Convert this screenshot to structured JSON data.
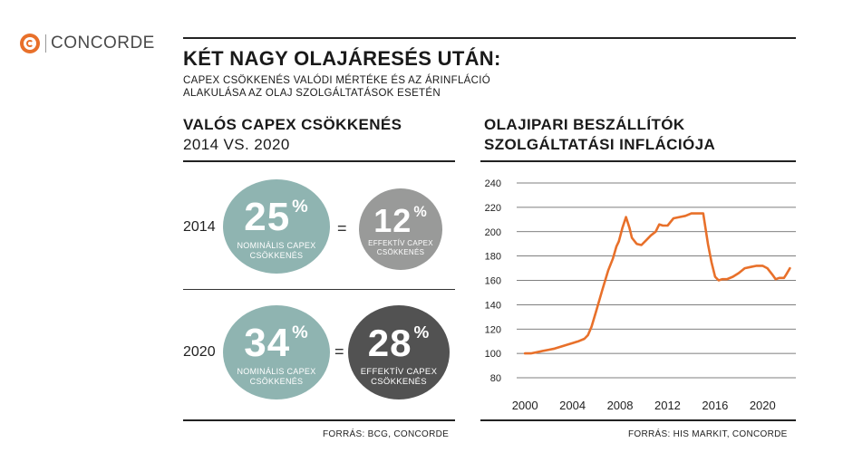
{
  "logo": {
    "text": "CONCORDE"
  },
  "header": {
    "title": "KÉT NAGY OLAJÁRESÉS UTÁN:",
    "subtitle_line1": "CAPEX CSÖKKENÉS VALÓDI MÉRTÉKE ÉS AZ ÁRINFLÁCIÓ",
    "subtitle_line2": "ALAKULÁSA AZ OLAJ SZOLGÁLTATÁSOK ESETÉN"
  },
  "left": {
    "title_line1": "VALÓS CAPEX CSÖKKENÉS",
    "title_line2": "2014 VS. 2020",
    "rows": [
      {
        "year": "2014",
        "nominal_value": "25",
        "nominal_unit": "%",
        "nominal_label_1": "NOMINÁLIS CAPEX",
        "nominal_label_2": "CSÖKKENÉS",
        "equals": "=",
        "effective_value": "12",
        "effective_unit": "%",
        "effective_label_1": "EFFEKTÍV CAPEX",
        "effective_label_2": "CSÖKKENÉS"
      },
      {
        "year": "2020",
        "nominal_value": "34",
        "nominal_unit": "%",
        "nominal_label_1": "NOMINÁLIS CAPEX",
        "nominal_label_2": "CSÖKKENÉS",
        "equals": "=",
        "effective_value": "28",
        "effective_unit": "%",
        "effective_label_1": "EFFEKTÍV CAPEX",
        "effective_label_2": "CSÖKKENÉS"
      }
    ],
    "source": "FORRÁS: BCG, CONCORDE"
  },
  "right": {
    "title_line1": "OLAJIPARI BESZÁLLÍTÓK",
    "title_line2": "SZOLGÁLTATÁSI INFLÁCIÓJA",
    "source": "FORRÁS: HIS MARKIT, CONCORDE"
  },
  "colors": {
    "teal": "#8fb4b1",
    "grey": "#999a99",
    "dark": "#525252",
    "accent": "#e8702a"
  },
  "chart_data": {
    "type": "line",
    "title": "OLAJIPARI BESZÁLLÍTÓK SZOLGÁLTATÁSI INFLÁCIÓJA",
    "xlabel": "",
    "ylabel": "",
    "xlim": [
      1999.3,
      2022.8
    ],
    "ylim": [
      80,
      240
    ],
    "yticks": [
      80,
      100,
      120,
      140,
      160,
      180,
      200,
      220,
      240
    ],
    "xticks": [
      2000,
      2004,
      2008,
      2012,
      2016,
      2020
    ],
    "grid": "horizontal",
    "series": [
      {
        "color": "#e8702a",
        "x": [
          2000.0,
          2000.5,
          2001.0,
          2001.5,
          2002.0,
          2002.5,
          2003.0,
          2003.5,
          2004.0,
          2004.5,
          2005.0,
          2005.3,
          2005.6,
          2006.0,
          2006.5,
          2007.0,
          2007.4,
          2007.7,
          2007.9,
          2008.2,
          2008.5,
          2008.8,
          2009.0,
          2009.4,
          2009.8,
          2010.2,
          2010.6,
          2011.0,
          2011.3,
          2011.6,
          2012.0,
          2012.5,
          2013.0,
          2013.5,
          2014.0,
          2014.5,
          2015.0,
          2015.4,
          2015.7,
          2016.0,
          2016.3,
          2016.6,
          2017.0,
          2017.5,
          2018.0,
          2018.5,
          2019.0,
          2019.5,
          2020.0,
          2020.4,
          2020.8,
          2021.1,
          2021.4,
          2021.8,
          2022.0,
          2022.3
        ],
        "values": [
          100,
          100,
          101,
          102,
          103,
          104,
          105.5,
          107,
          108.5,
          110,
          112,
          115,
          122,
          135,
          152,
          168,
          178,
          188,
          192,
          203,
          212,
          203,
          195,
          190,
          189,
          193,
          197,
          200,
          206,
          205,
          205,
          211,
          212,
          213,
          215,
          215,
          215,
          190,
          175,
          163,
          160,
          161,
          161,
          163,
          166,
          170,
          171,
          172,
          172,
          170,
          165,
          161,
          162,
          162,
          165,
          170
        ]
      }
    ]
  }
}
